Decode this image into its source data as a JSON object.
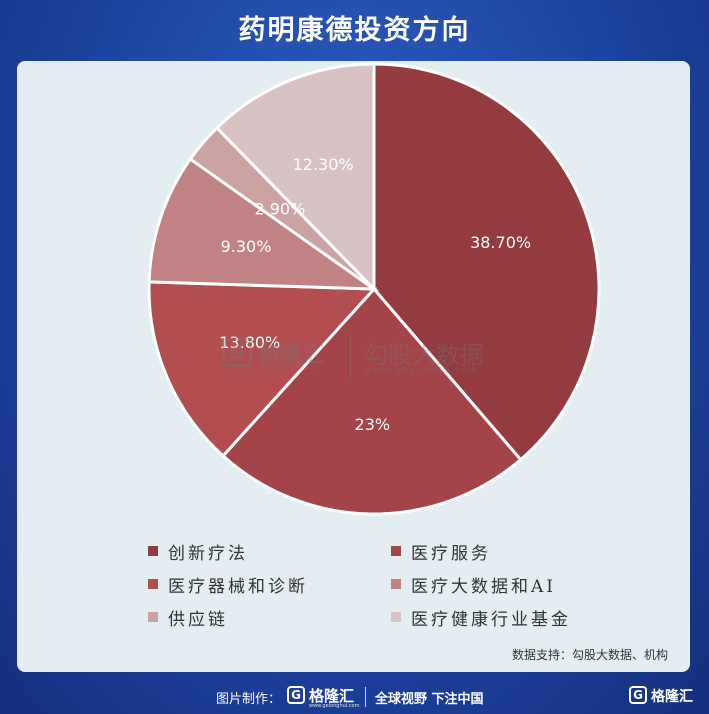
{
  "title": "药明康德投资方向",
  "chart_data": {
    "type": "pie",
    "title": "",
    "slices": [
      {
        "label": "创新疗法",
        "value": 38.7,
        "display": "38.70%",
        "color": "#933b3f"
      },
      {
        "label": "医疗服务",
        "value": 23.0,
        "display": "23%",
        "color": "#a44449"
      },
      {
        "label": "医疗器械和诊断",
        "value": 13.8,
        "display": "13.80%",
        "color": "#b24e50"
      },
      {
        "label": "医疗大数据和AI",
        "value": 9.3,
        "display": "9.30%",
        "color": "#c08283"
      },
      {
        "label": "供应链",
        "value": 2.9,
        "display": "2.90%",
        "color": "#cca2a3"
      },
      {
        "label": "医疗健康行业基金",
        "value": 12.3,
        "display": "12.30%",
        "color": "#d8c2c3"
      }
    ],
    "legend_position": "bottom"
  },
  "source": "数据支持：勾股大数据、机构",
  "watermark": {
    "logo_letter": "G",
    "name": "格隆汇",
    "url": "www.gelonghui.com",
    "partner_name": "勾股大数据",
    "partner_url": "www.gogudata.com"
  },
  "footer": {
    "credit_label": "图片制作：",
    "brand_letter": "G",
    "brand_name": "格隆汇",
    "brand_url": "www.gelonghui.com",
    "slogan": "全球视野 下注中国",
    "corner_letter": "G",
    "corner_name": "格隆汇"
  }
}
